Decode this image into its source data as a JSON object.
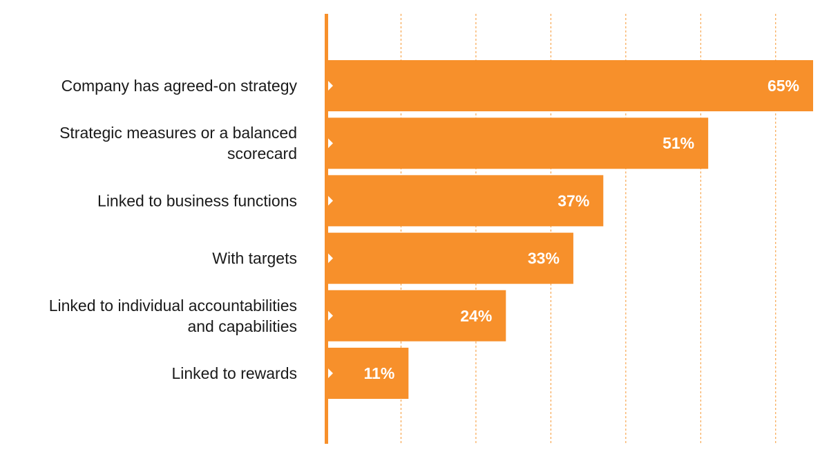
{
  "chart_data": {
    "type": "bar",
    "orientation": "horizontal",
    "categories": [
      [
        "Company has agreed-on strategy"
      ],
      [
        "Strategic measures or a balanced",
        "scorecard"
      ],
      [
        "Linked to business functions"
      ],
      [
        "With targets"
      ],
      [
        "Linked to individual accountabilities",
        "and capabilities"
      ],
      [
        "Linked to rewards"
      ]
    ],
    "values": [
      65,
      51,
      37,
      33,
      24,
      11
    ],
    "value_labels": [
      "65%",
      "51%",
      "37%",
      "33%",
      "24%",
      "11%"
    ],
    "xlim": [
      0,
      65
    ],
    "gridlines": [
      10,
      20,
      30,
      40,
      50,
      60
    ],
    "grid": true,
    "legend": "none",
    "colors": {
      "bar": "#f7902b",
      "axis": "#f7902b",
      "grid": "#f7962e",
      "label": "#1a1a1a",
      "value_text": "#ffffff"
    }
  }
}
